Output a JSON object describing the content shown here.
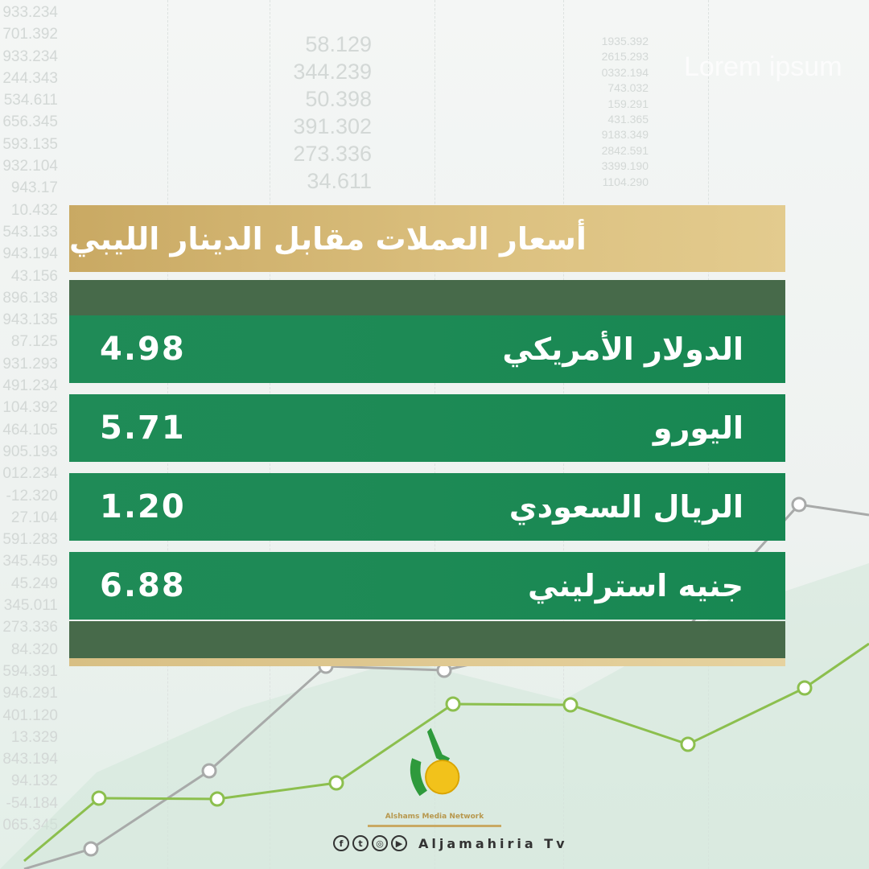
{
  "background_numbers": {
    "left": [
      "933.234",
      "701.392",
      "933.234",
      "244.343",
      "534.611",
      "656.345",
      "593.135",
      "932.104",
      "943.17",
      "10.432",
      "543.133",
      "943.194",
      "43.156",
      "896.138",
      "943.135",
      "87.125",
      "931.293",
      "491.234",
      "104.392",
      "464.105",
      "905.193",
      "012.234",
      "-12.320",
      "27.104",
      "591.283",
      "345.459",
      "45.249",
      "345.011",
      "273.336",
      "84.320",
      "594.391",
      "946.291",
      "401.120",
      "13.329",
      "843.194",
      "94.132",
      "-54.184",
      "065.345"
    ],
    "middle": [
      "58.129",
      "344.239",
      "50.398",
      "391.302",
      "273.336",
      "34.611"
    ],
    "right": [
      "1935.392",
      "2615.293",
      "0332.194",
      "743.032",
      "159.291",
      "431.365",
      "9183.349",
      "2842.591",
      "3399.190",
      "1104.290"
    ],
    "watermark": "Lorem ipsum"
  },
  "title": "أسعار العملات مقابل الدينار الليبي",
  "rates": [
    {
      "currency": "الدولار الأمريكي",
      "value": "4.98"
    },
    {
      "currency": "اليورو",
      "value": "5.71"
    },
    {
      "currency": "الريال السعودي",
      "value": "1.20"
    },
    {
      "currency": "جنيه استرليني",
      "value": "6.88"
    }
  ],
  "footer": {
    "network": "Alshams Media Network",
    "channel": "Aljamahiria Tv",
    "social_icons": [
      "facebook-icon",
      "twitter-icon",
      "instagram-icon",
      "youtube-icon"
    ]
  },
  "colors": {
    "gold": "#d6bb7a",
    "green": "#1f8b57",
    "dark_green": "#476a4a",
    "chart_green": "#7cb342"
  }
}
